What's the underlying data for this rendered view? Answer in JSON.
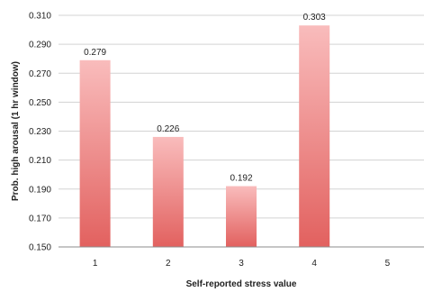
{
  "chart_data": {
    "type": "bar",
    "categories": [
      "1",
      "2",
      "3",
      "4",
      "5"
    ],
    "values": [
      0.279,
      0.226,
      0.192,
      0.303,
      null
    ],
    "data_labels": [
      "0.279",
      "0.226",
      "0.192",
      "0.303",
      ""
    ],
    "xlabel": "Self-reported stress value",
    "ylabel": "Prob. high arousal (1 hr window)",
    "ylim": [
      0.15,
      0.31
    ],
    "yticks": [
      "0.150",
      "0.170",
      "0.190",
      "0.210",
      "0.230",
      "0.250",
      "0.270",
      "0.290",
      "0.310"
    ],
    "grid": true,
    "legend": "none",
    "colors": {
      "bar_top": "#f9bcbc",
      "bar_bottom": "#e2615f",
      "grid": "#d3d3d3",
      "axis": "#8c8c8c"
    }
  }
}
